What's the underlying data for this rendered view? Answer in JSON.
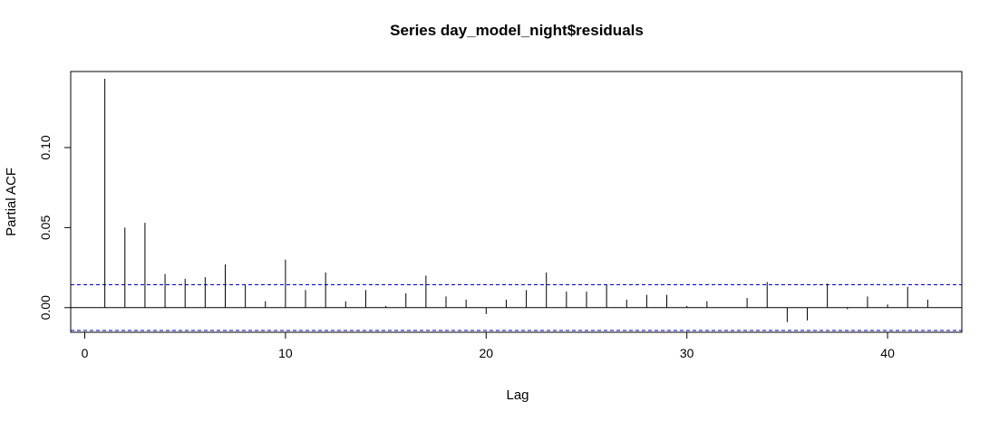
{
  "chart_data": {
    "type": "bar",
    "title": "Series  day_model_night$residuals",
    "xlabel": "Lag",
    "ylabel": "Partial ACF",
    "xlim": [
      -0.7,
      43.7
    ],
    "ylim": [
      -0.0154,
      0.1475
    ],
    "x_ticks": [
      0,
      10,
      20,
      30,
      40
    ],
    "y_ticks": [
      0.0,
      0.05,
      0.1
    ],
    "y_tick_labels": [
      "0.00",
      "0.05",
      "0.10"
    ],
    "confidence_bound": 0.0143,
    "confidence_line_color": "#0000cc",
    "bar_color": "#000000",
    "lags": [
      1,
      2,
      3,
      4,
      5,
      6,
      7,
      8,
      9,
      10,
      11,
      12,
      13,
      14,
      15,
      16,
      17,
      18,
      19,
      20,
      21,
      22,
      23,
      24,
      25,
      26,
      27,
      28,
      29,
      30,
      31,
      32,
      33,
      34,
      35,
      36,
      37,
      38,
      39,
      40,
      41,
      42
    ],
    "values": [
      0.143,
      0.05,
      0.053,
      0.021,
      0.018,
      0.019,
      0.027,
      0.014,
      0.004,
      0.03,
      0.011,
      0.022,
      0.004,
      0.011,
      0.001,
      0.009,
      0.02,
      0.007,
      0.005,
      -0.004,
      0.005,
      0.011,
      0.022,
      0.01,
      0.01,
      0.014,
      0.005,
      0.008,
      0.008,
      0.001,
      0.004,
      0.0,
      0.006,
      0.016,
      -0.009,
      -0.008,
      0.015,
      -0.001,
      0.007,
      0.002,
      0.013,
      0.005
    ]
  }
}
